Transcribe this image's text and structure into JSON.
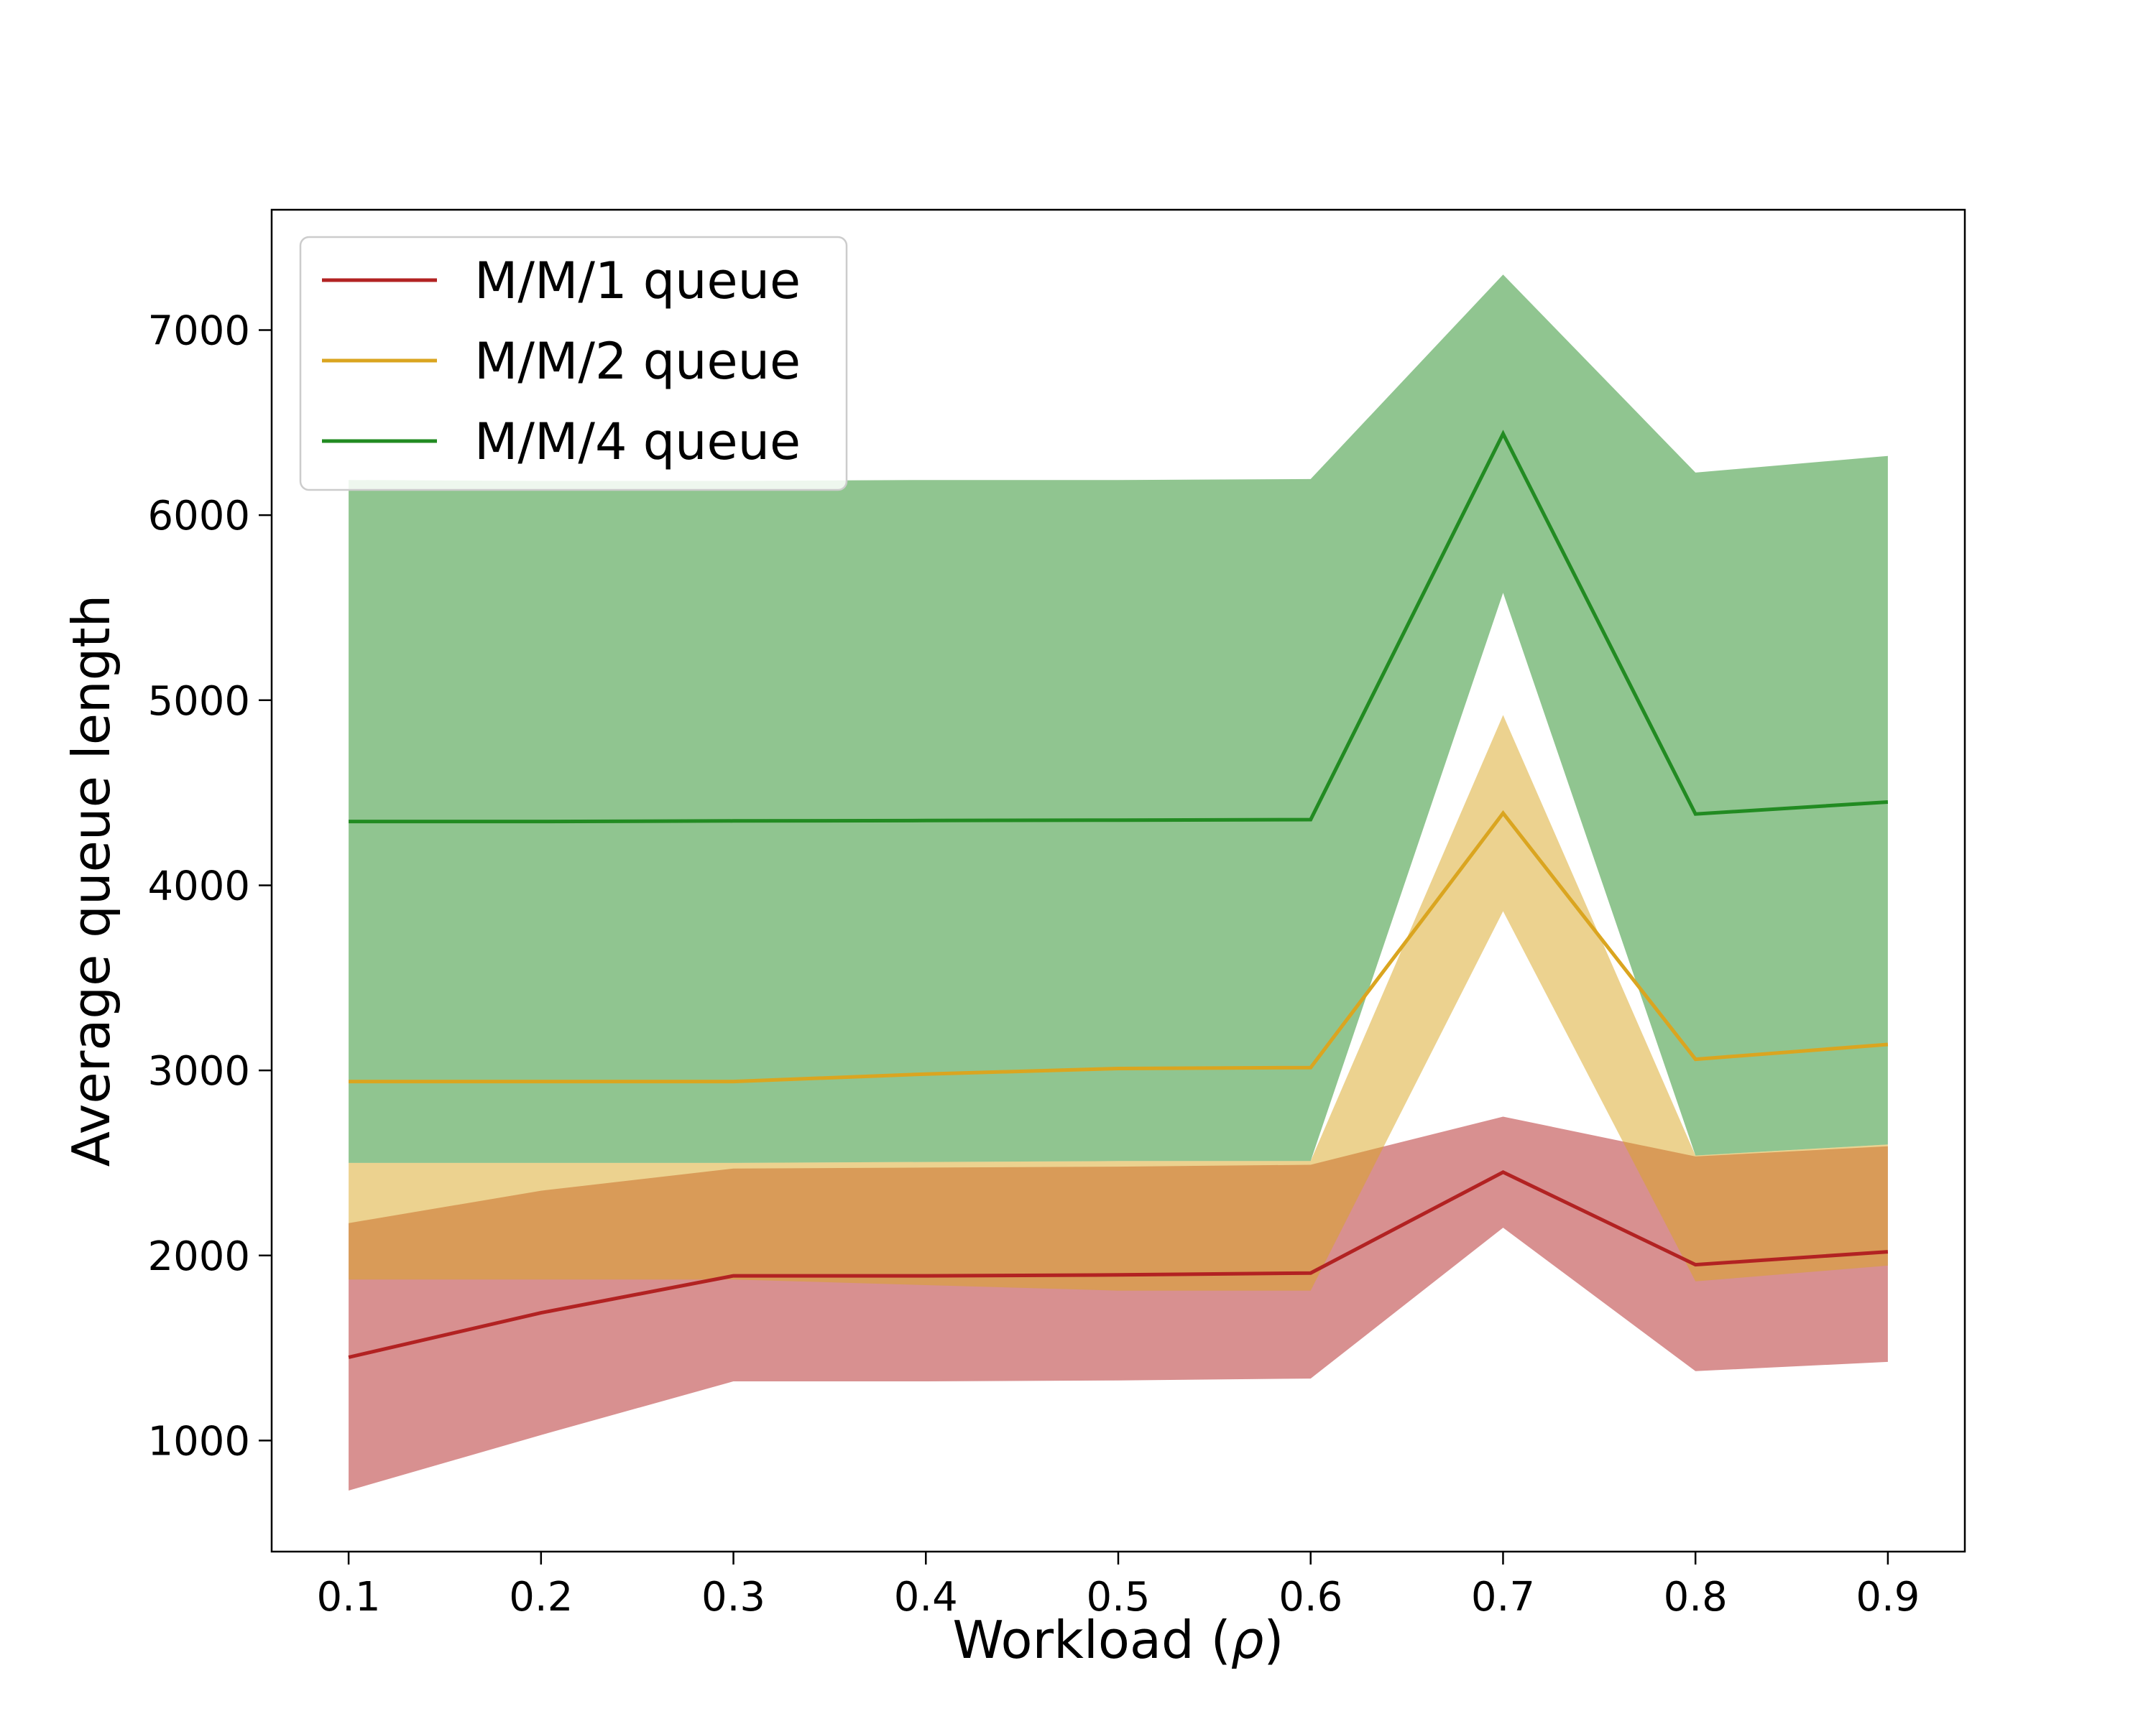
{
  "chart_data": {
    "type": "line",
    "title": "",
    "xlabel_main": "Workload (",
    "xlabel_symbol": "ρ",
    "xlabel_close": ")",
    "ylabel": "Average queue length",
    "x": [
      0.1,
      0.2,
      0.3,
      0.4,
      0.5,
      0.6,
      0.7,
      0.8,
      0.9
    ],
    "xlim": [
      0.06,
      0.94
    ],
    "ylim": [
      400,
      7650
    ],
    "x_ticks": [
      "0.1",
      "0.2",
      "0.3",
      "0.4",
      "0.5",
      "0.6",
      "0.7",
      "0.8",
      "0.9"
    ],
    "y_ticks": [
      "1000",
      "2000",
      "3000",
      "4000",
      "5000",
      "6000",
      "7000"
    ],
    "grid": false,
    "legend_position": "upper-left",
    "series": [
      {
        "name": "M/M/1 queue",
        "color": "#b22222",
        "values": [
          1450,
          1690,
          1890,
          1890,
          1895,
          1905,
          2450,
          1950,
          2020
        ],
        "band_lower": [
          730,
          1030,
          1320,
          1320,
          1325,
          1335,
          2150,
          1375,
          1425
        ],
        "band_upper": [
          2175,
          2350,
          2470,
          2475,
          2480,
          2490,
          2750,
          2535,
          2590
        ]
      },
      {
        "name": "M/M/2 queue",
        "color": "#daa520",
        "values": [
          2940,
          2940,
          2940,
          2980,
          3010,
          3015,
          4390,
          3060,
          3140
        ],
        "band_lower": [
          1870,
          1870,
          1870,
          1840,
          1810,
          1810,
          3860,
          1860,
          1945
        ],
        "band_upper": [
          2500,
          2500,
          2500,
          2505,
          2510,
          2510,
          4920,
          2540,
          2600
        ]
      },
      {
        "name": "M/M/4 queue",
        "color": "#228b22",
        "values": [
          4345,
          4345,
          4348,
          4350,
          4352,
          4355,
          6440,
          4385,
          4450
        ],
        "band_lower": [
          2500,
          2500,
          2500,
          2505,
          2510,
          2510,
          5580,
          2540,
          2600
        ],
        "band_upper": [
          6190,
          6185,
          6185,
          6190,
          6190,
          6195,
          7300,
          6230,
          6320
        ]
      }
    ]
  }
}
